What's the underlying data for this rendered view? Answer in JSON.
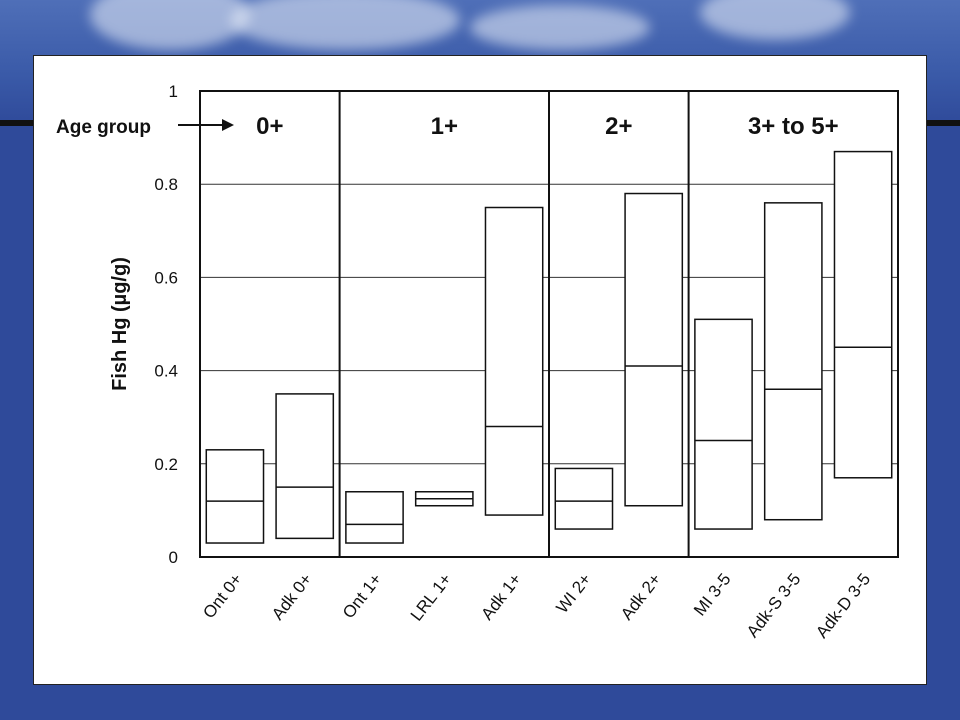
{
  "chart_data": {
    "type": "box",
    "ylabel": "Fish Hg (µg/g)",
    "ylim": [
      0,
      1
    ],
    "yticks": [
      "0",
      "0.2",
      "0.4",
      "0.6",
      "0.8",
      "1"
    ],
    "ytick_values": [
      0,
      0.2,
      0.4,
      0.6,
      0.8,
      1
    ],
    "annotation": "Age group",
    "grid": "horizontal",
    "groups": [
      {
        "label": "0+",
        "categories": [
          "Ont 0+",
          "Adk 0+"
        ]
      },
      {
        "label": "1+",
        "categories": [
          "Ont 1+",
          "LRL 1+",
          "Adk 1+"
        ]
      },
      {
        "label": "2+",
        "categories": [
          "WI 2+",
          "Adk 2+"
        ]
      },
      {
        "label": "3+ to 5+",
        "categories": [
          "MI 3-5",
          "Adk-S 3-5",
          "Adk-D 3-5"
        ]
      }
    ],
    "categories": [
      "Ont 0+",
      "Adk 0+",
      "Ont 1+",
      "LRL 1+",
      "Adk 1+",
      "WI 2+",
      "Adk 2+",
      "MI 3-5",
      "Adk-S 3-5",
      "Adk-D 3-5"
    ],
    "boxes": [
      {
        "low": 0.03,
        "median": 0.12,
        "high": 0.23
      },
      {
        "low": 0.04,
        "median": 0.15,
        "high": 0.35
      },
      {
        "low": 0.03,
        "median": 0.07,
        "high": 0.14
      },
      {
        "low": 0.11,
        "median": 0.125,
        "high": 0.14
      },
      {
        "low": 0.09,
        "median": 0.28,
        "high": 0.75
      },
      {
        "low": 0.06,
        "median": 0.12,
        "high": 0.19
      },
      {
        "low": 0.11,
        "median": 0.41,
        "high": 0.78
      },
      {
        "low": 0.06,
        "median": 0.25,
        "high": 0.51
      },
      {
        "low": 0.08,
        "median": 0.36,
        "high": 0.76
      },
      {
        "low": 0.17,
        "median": 0.45,
        "high": 0.87
      }
    ]
  }
}
